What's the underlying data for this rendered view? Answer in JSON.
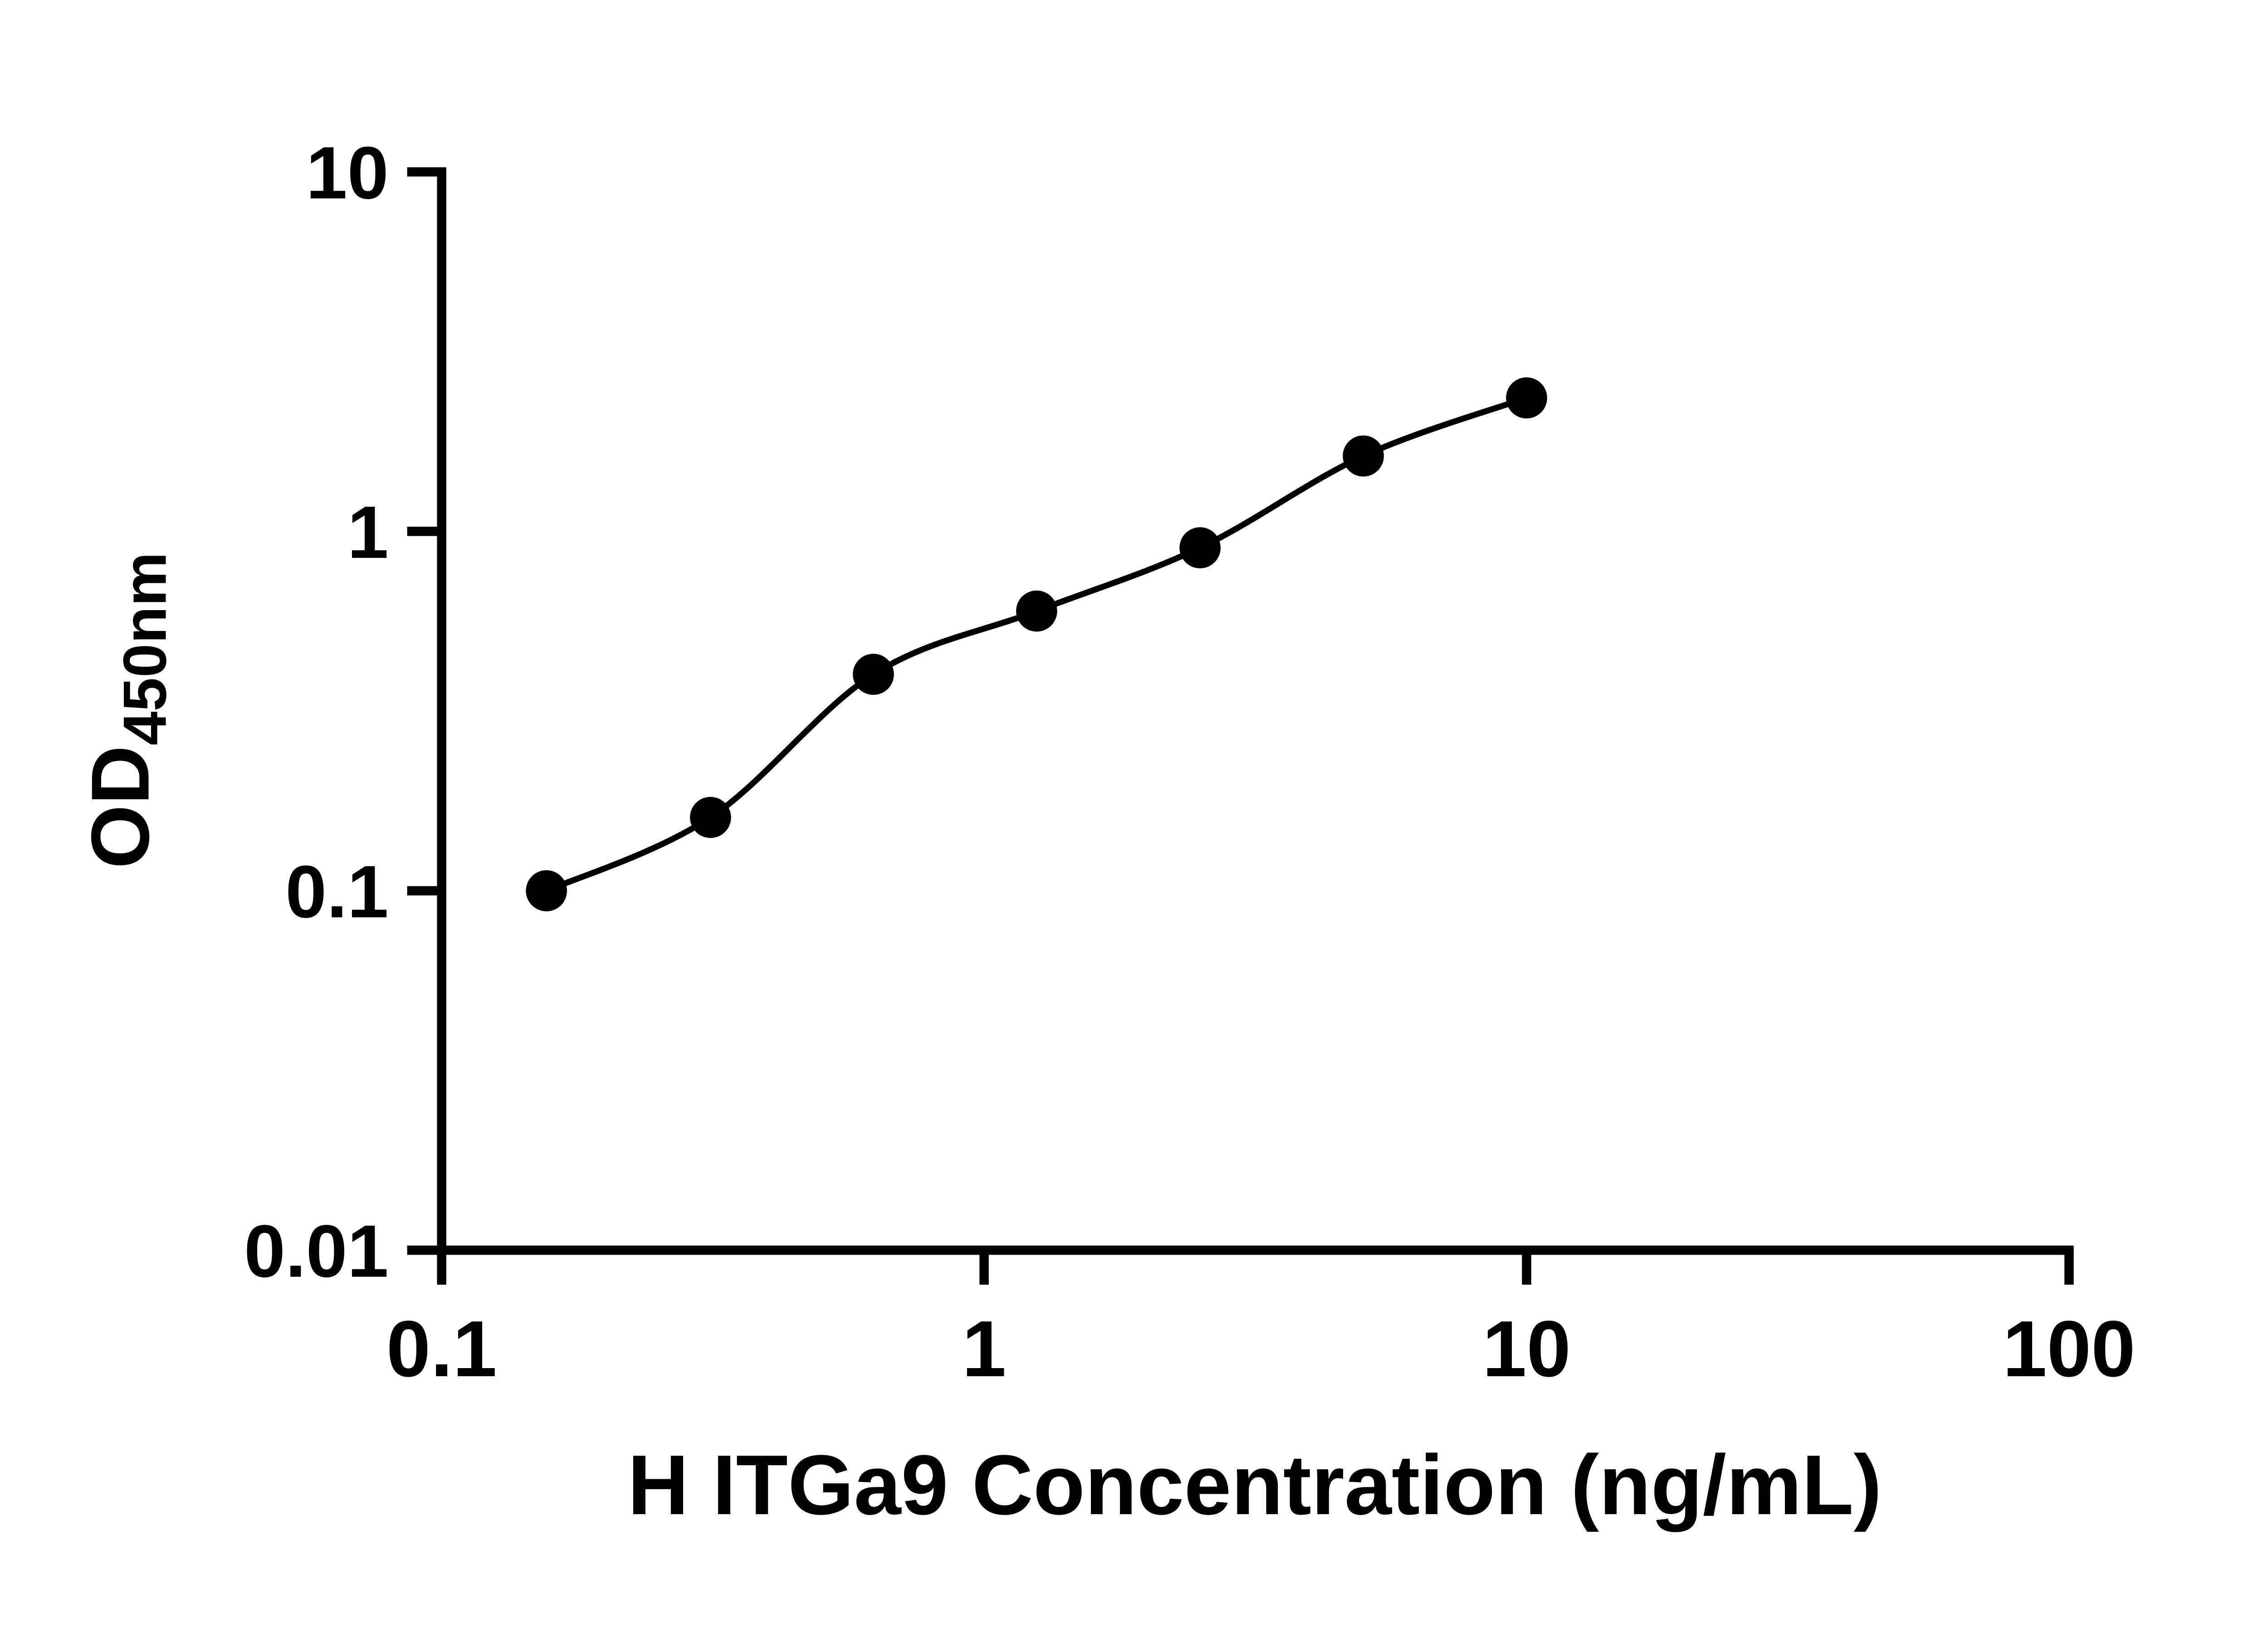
{
  "chart_data": {
    "type": "scatter",
    "subtype": "elisa-standard-curve",
    "title": "",
    "xlabel": "H ITGa9 Concentration (ng/mL)",
    "ylabel": "OD450nm",
    "ylabel_main": "OD",
    "ylabel_sub": "450nm",
    "x_scale": "log10",
    "y_scale": "log10",
    "xlim": [
      0.1,
      100
    ],
    "ylim": [
      0.01,
      10
    ],
    "x_tick_labels": [
      "0.1",
      "1",
      "10",
      "100"
    ],
    "y_tick_labels": [
      "0.01",
      "0.1",
      "1",
      "10"
    ],
    "grid": false,
    "legend": null,
    "x": [
      0.156,
      0.313,
      0.625,
      1.25,
      2.5,
      5,
      10
    ],
    "y": [
      0.1,
      0.16,
      0.4,
      0.6,
      0.9,
      1.62,
      2.35
    ],
    "curve": "smooth_fit_through_points",
    "marker": {
      "shape": "circle",
      "color": "#000000"
    },
    "line_color": "#000000",
    "axis_color": "#000000",
    "background": "#ffffff"
  }
}
